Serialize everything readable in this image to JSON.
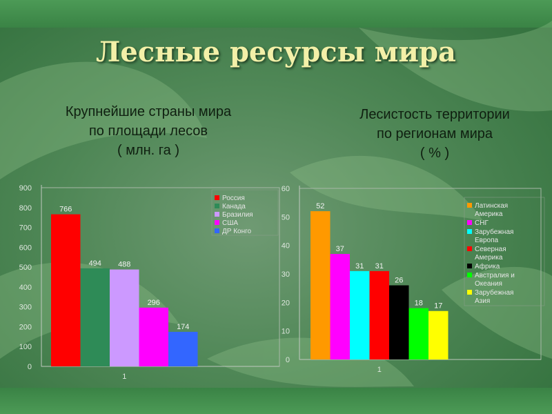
{
  "slide": {
    "title": "Лесные  ресурсы  мира",
    "left_subtitle": [
      "Крупнейшие  страны  мира",
      "по  площади   лесов",
      "( млн.  га )"
    ],
    "right_subtitle": [
      "Лесистость  территории",
      "по  регионам  мира",
      "( % )"
    ]
  },
  "chart_data": [
    {
      "type": "bar",
      "categories": [
        "1"
      ],
      "series": [
        {
          "name": "Россия",
          "values": [
            766
          ],
          "color": "#ff0000"
        },
        {
          "name": "Канада",
          "values": [
            494
          ],
          "color": "#2e8b57"
        },
        {
          "name": "Бразилия",
          "values": [
            488
          ],
          "color": "#cc99ff"
        },
        {
          "name": "США",
          "values": [
            296
          ],
          "color": "#ff00ff"
        },
        {
          "name": "ДР Конго",
          "values": [
            174
          ],
          "color": "#3366ff"
        }
      ],
      "yticks": [
        "0",
        "100",
        "200",
        "300",
        "400",
        "500",
        "600",
        "700",
        "800",
        "900"
      ],
      "ylim": [
        0,
        900
      ],
      "data_labels": [
        "766",
        "494",
        "488",
        "296",
        "174"
      ],
      "legend": "right",
      "grid": false
    },
    {
      "type": "bar",
      "categories": [
        "1"
      ],
      "series": [
        {
          "name": "Латинская Америка",
          "values": [
            52
          ],
          "color": "#ff9900"
        },
        {
          "name": "СНГ",
          "values": [
            37
          ],
          "color": "#ff00ff"
        },
        {
          "name": "Зарубежная Европа",
          "values": [
            31
          ],
          "color": "#00ffff"
        },
        {
          "name": "Северная Америка",
          "values": [
            31
          ],
          "color": "#ff0000"
        },
        {
          "name": "Африка",
          "values": [
            26
          ],
          "color": "#000000"
        },
        {
          "name": "Австралия и Океания",
          "values": [
            18
          ],
          "color": "#00ff00"
        },
        {
          "name": "Зарубежная Азия",
          "values": [
            17
          ],
          "color": "#ffff00"
        }
      ],
      "yticks": [
        "0",
        "10",
        "20",
        "30",
        "40",
        "50",
        "60"
      ],
      "ylim": [
        0,
        60
      ],
      "data_labels": [
        "52",
        "37",
        "31",
        "31",
        "26",
        "18",
        "17"
      ],
      "legend": "right",
      "grid": false
    }
  ]
}
